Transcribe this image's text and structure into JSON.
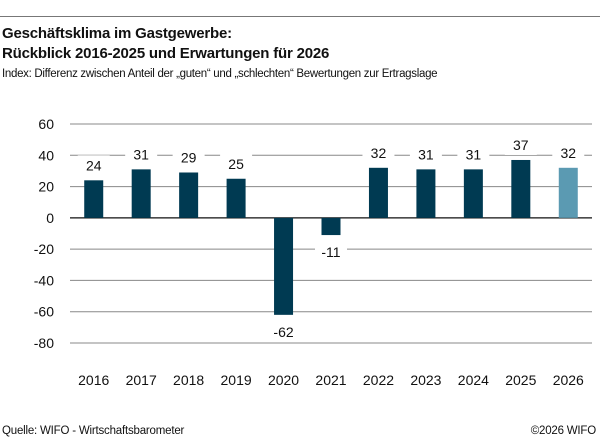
{
  "source": "Quelle: WIFO - Wirtschaftsbarometer",
  "copyright": "©2026 WIFO",
  "colors": {
    "actual": "#003a52",
    "forecast": "#5b9ab2",
    "grid": "#888888"
  },
  "chart_data": {
    "type": "bar",
    "title_lines": [
      "Geschäftsklima im Gastgewerbe:",
      "Rückblick 2016-2025 und Erwartungen für 2026"
    ],
    "subtitle": "Index: Differenz zwischen Anteil der „guten“ und „schlechten“ Bewertungen zur Ertragslage",
    "categories": [
      "2016",
      "2017",
      "2018",
      "2019",
      "2020",
      "2021",
      "2022",
      "2023",
      "2024",
      "2025",
      "2026"
    ],
    "values": [
      24,
      31,
      29,
      25,
      -62,
      -11,
      32,
      31,
      31,
      37,
      32
    ],
    "forecast_categories": [
      "2026"
    ],
    "ylim": [
      -80,
      60
    ],
    "yticks": [
      60,
      40,
      20,
      0,
      -20,
      -40,
      -60,
      -80
    ],
    "grid": true,
    "data_labels": true
  }
}
